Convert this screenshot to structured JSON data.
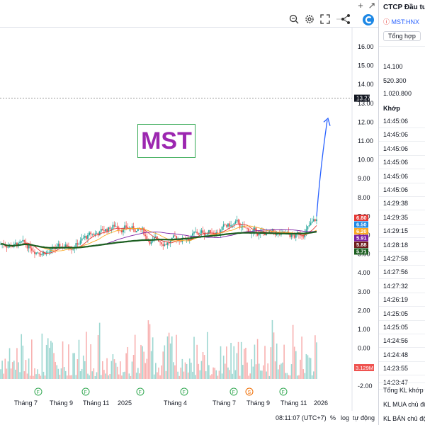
{
  "toolbar": {
    "icons": [
      "pencil-icon",
      "gear-icon",
      "fullscreen-icon",
      "more-icon",
      "share-icon",
      "logo-icon"
    ]
  },
  "window": {
    "add_icon": "+",
    "arrow_icon": "↗"
  },
  "symbol_watermark": "MST",
  "price_scale": [
    "16.00",
    "15.00",
    "14.00",
    "13.00",
    "12.00",
    "11.00",
    "10.00",
    "9.00",
    "8.00",
    "7.00",
    "6.00",
    "5.00",
    "4.00",
    "3.00",
    "2.00",
    "1.00",
    "0.00",
    "-1.00",
    "-2.00"
  ],
  "current_price_label": "13.27",
  "ma_labels": [
    {
      "value": "6.80",
      "color": "#e53935"
    },
    {
      "value": "6.50",
      "color": "#1e88e5"
    },
    {
      "value": "6.20",
      "color": "#f9a825"
    },
    {
      "value": "5.91",
      "color": "#7b1fa2"
    },
    {
      "value": "5.88",
      "color": "#6d1b1b"
    },
    {
      "value": "5.71",
      "color": "#1b5e20"
    }
  ],
  "volume_label": "3.129M",
  "time_axis": [
    "Tháng 7",
    "Tháng 9",
    "Tháng 11",
    "2025",
    "Tháng 4",
    "Tháng 7",
    "Tháng 9",
    "Tháng 11",
    "2026"
  ],
  "events": [
    "F",
    "F",
    "F",
    "F",
    "F",
    "S",
    "F"
  ],
  "bottom_bar": {
    "time": "08:11:07 (UTC+7)",
    "percent": "%",
    "log": "log",
    "auto": "tự động"
  },
  "right_panel": {
    "company": "CTCP Đầu tư",
    "ticker": "MST:HNX",
    "tab": "Tổng hợp",
    "stats": [
      "14.100",
      "520.300",
      "1.020.800"
    ],
    "section": "Khớp",
    "times": [
      "14:45:06",
      "14:45:06",
      "14:45:06",
      "14:45:06",
      "14:45:06",
      "14:45:06",
      "14:29:38",
      "14:29:35",
      "14:29:15",
      "14:28:18",
      "14:27:58",
      "14:27:56",
      "14:27:32",
      "14:26:19",
      "14:25:05",
      "14:25:05",
      "14:24:56",
      "14:24:48",
      "14:23:55",
      "14:23:47"
    ],
    "footer": [
      "Tổng KL khớp",
      "KL MUA chủ động",
      "KL BÁN chủ độ"
    ]
  },
  "colors": {
    "up": "#26a69a",
    "down": "#ef5350",
    "arrow": "#2962ff"
  }
}
